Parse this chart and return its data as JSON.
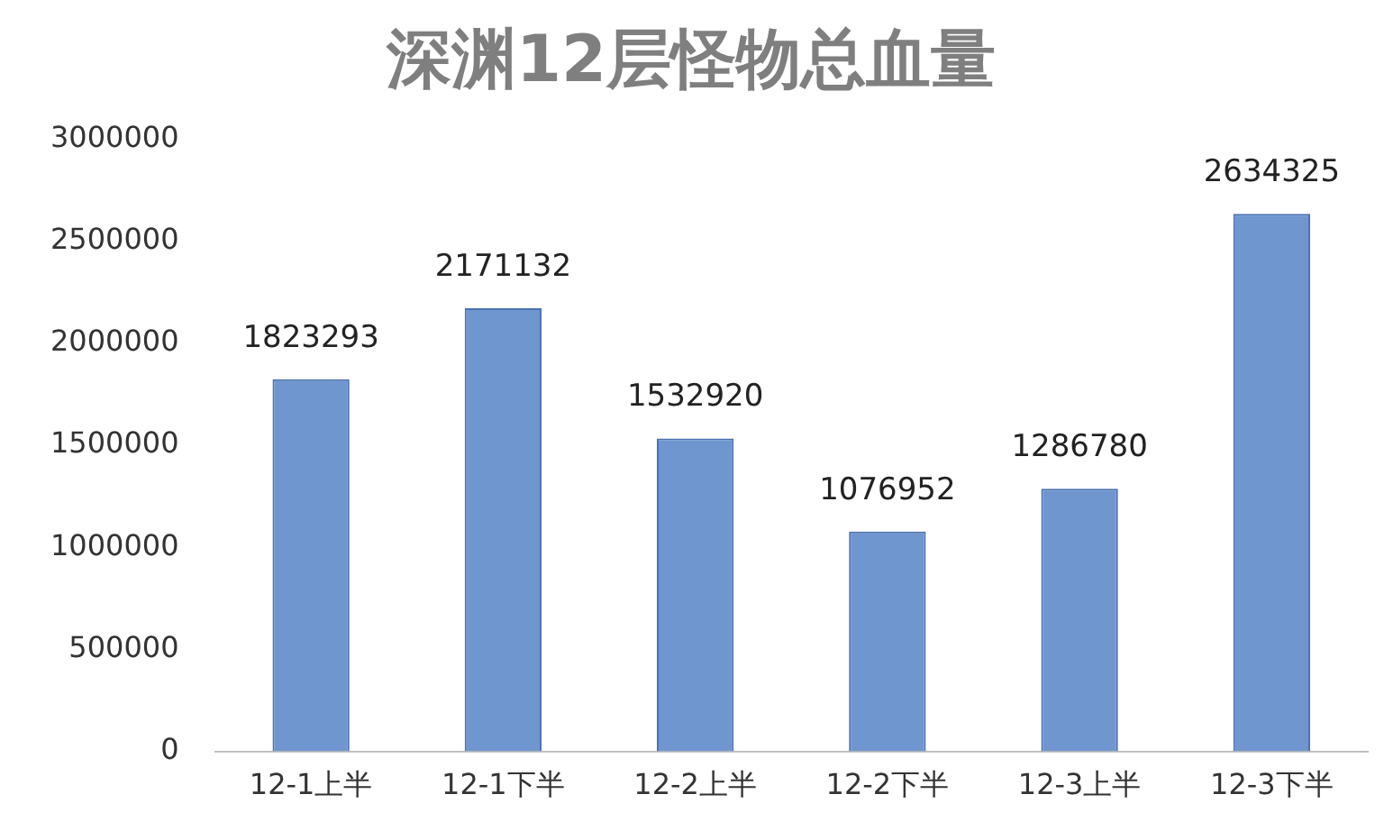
{
  "chart_data": {
    "type": "bar",
    "title": "深渊12层怪物总血量",
    "categories": [
      "12-1上半",
      "12-1下半",
      "12-2上半",
      "12-2下半",
      "12-3上半",
      "12-3下半"
    ],
    "values": [
      1823293,
      2171132,
      1532920,
      1076952,
      1286780,
      2634325
    ],
    "color": "#6f96cf",
    "ylim": [
      0,
      3000000
    ],
    "yticks": [
      0,
      500000,
      1000000,
      1500000,
      2000000,
      2500000,
      3000000
    ],
    "grid": false,
    "legend": false,
    "data_labels": true
  }
}
